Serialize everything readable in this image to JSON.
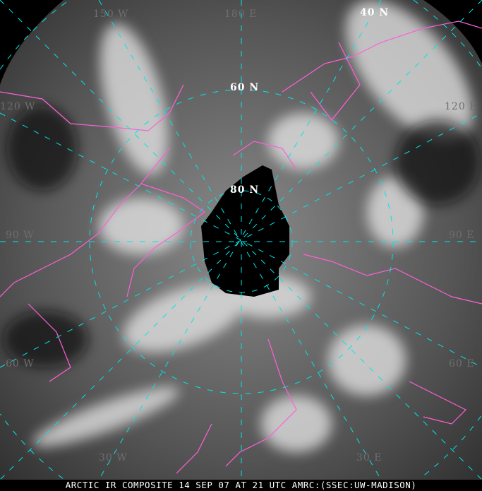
{
  "caption": "ARCTIC IR COMPOSITE 14 SEP 07 AT 21 UTC AMRC:(SSEC:UW-MADISON)",
  "labels": {
    "lat40": "40 N",
    "lat60": "60 N",
    "lat80": "80 N",
    "lon180": "180 E",
    "lon150w": "150 W",
    "lon120w": "120 W",
    "lon120e": "120 E",
    "lon90w": "90 W",
    "lon90e": "90 E",
    "lon60w": "60 W",
    "lon60e": "60 E",
    "lon30w": "30 W",
    "lon30e": "30 E"
  },
  "colors": {
    "graticule": "#00e5e5",
    "coastline": "#ff5fd7",
    "polar_gap": "#000000"
  }
}
